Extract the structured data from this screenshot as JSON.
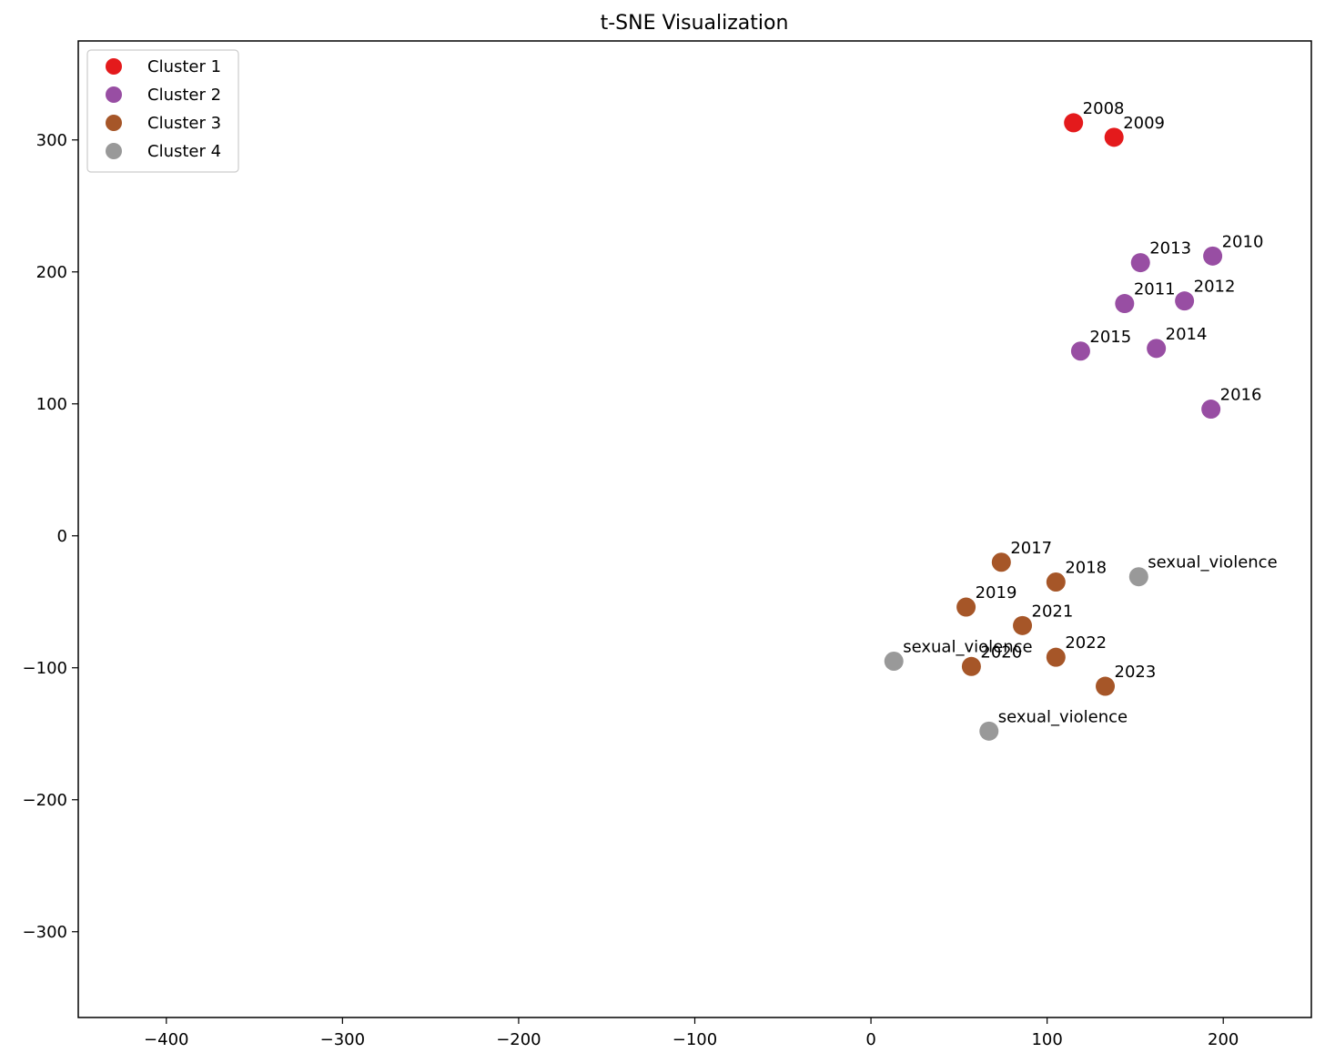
{
  "chart_data": {
    "type": "scatter",
    "title": "t-SNE Visualization",
    "xlabel": "",
    "ylabel": "",
    "xlim": [
      -450,
      250
    ],
    "ylim": [
      -365,
      375
    ],
    "x_ticks": [
      -400,
      -300,
      -200,
      -100,
      0,
      100,
      200
    ],
    "y_ticks": [
      -300,
      -200,
      -100,
      0,
      100,
      200,
      300
    ],
    "grid": false,
    "legend_position": "top-left",
    "series": [
      {
        "name": "Cluster 1",
        "color": "#e41a1c",
        "points": [
          {
            "x": 115,
            "y": 313,
            "label": "2008"
          },
          {
            "x": 138,
            "y": 302,
            "label": "2009"
          }
        ]
      },
      {
        "name": "Cluster 2",
        "color": "#984ea3",
        "points": [
          {
            "x": 194,
            "y": 212,
            "label": "2010"
          },
          {
            "x": 144,
            "y": 176,
            "label": "2011"
          },
          {
            "x": 178,
            "y": 178,
            "label": "2012"
          },
          {
            "x": 153,
            "y": 207,
            "label": "2013"
          },
          {
            "x": 162,
            "y": 142,
            "label": "2014"
          },
          {
            "x": 119,
            "y": 140,
            "label": "2015"
          },
          {
            "x": 193,
            "y": 96,
            "label": "2016"
          }
        ]
      },
      {
        "name": "Cluster 3",
        "color": "#a65628",
        "points": [
          {
            "x": 74,
            "y": -20,
            "label": "2017"
          },
          {
            "x": 105,
            "y": -35,
            "label": "2018"
          },
          {
            "x": 54,
            "y": -54,
            "label": "2019"
          },
          {
            "x": 57,
            "y": -99,
            "label": "2020"
          },
          {
            "x": 86,
            "y": -68,
            "label": "2021"
          },
          {
            "x": 105,
            "y": -92,
            "label": "2022"
          },
          {
            "x": 133,
            "y": -114,
            "label": "2023"
          }
        ]
      },
      {
        "name": "Cluster 4",
        "color": "#999999",
        "points": [
          {
            "x": 152,
            "y": -31,
            "label": "sexual_violence"
          },
          {
            "x": 13,
            "y": -95,
            "label": "sexual_violence"
          },
          {
            "x": 67,
            "y": -148,
            "label": "sexual_violence"
          }
        ]
      }
    ]
  }
}
